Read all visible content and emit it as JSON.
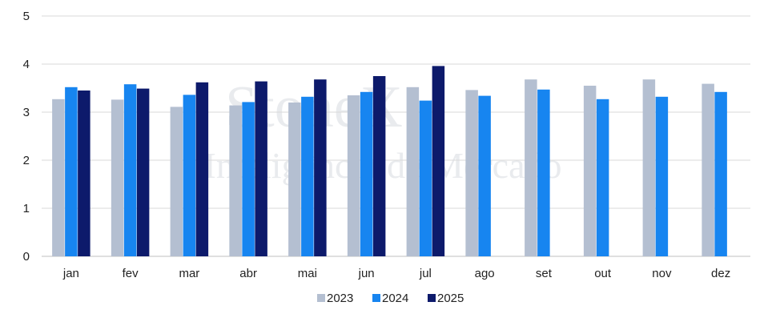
{
  "chart_data": {
    "type": "bar",
    "categories": [
      "jan",
      "fev",
      "mar",
      "abr",
      "mai",
      "jun",
      "jul",
      "ago",
      "set",
      "out",
      "nov",
      "dez"
    ],
    "series": [
      {
        "name": "2023",
        "color": "#b4bfd1",
        "values": [
          3.27,
          3.26,
          3.11,
          3.14,
          3.2,
          3.35,
          3.52,
          3.46,
          3.68,
          3.55,
          3.68,
          3.59
        ]
      },
      {
        "name": "2024",
        "color": "#1785f0",
        "values": [
          3.52,
          3.58,
          3.36,
          3.21,
          3.32,
          3.42,
          3.24,
          3.34,
          3.47,
          3.27,
          3.32,
          3.42
        ]
      },
      {
        "name": "2025",
        "color": "#0d1a6b",
        "values": [
          3.45,
          3.49,
          3.62,
          3.64,
          3.68,
          3.75,
          3.96,
          null,
          null,
          null,
          null,
          null
        ]
      }
    ],
    "yticks": [
      "0",
      "1",
      "2",
      "3",
      "4",
      "5"
    ],
    "ylim": [
      0,
      5
    ],
    "grid": true,
    "legend": "bottom",
    "gridColor": "#d9d9d9",
    "axisColor": "#bfbfbf"
  },
  "watermark": {
    "brand": "StoneX",
    "tagline": "Inteligência de Mercado"
  }
}
